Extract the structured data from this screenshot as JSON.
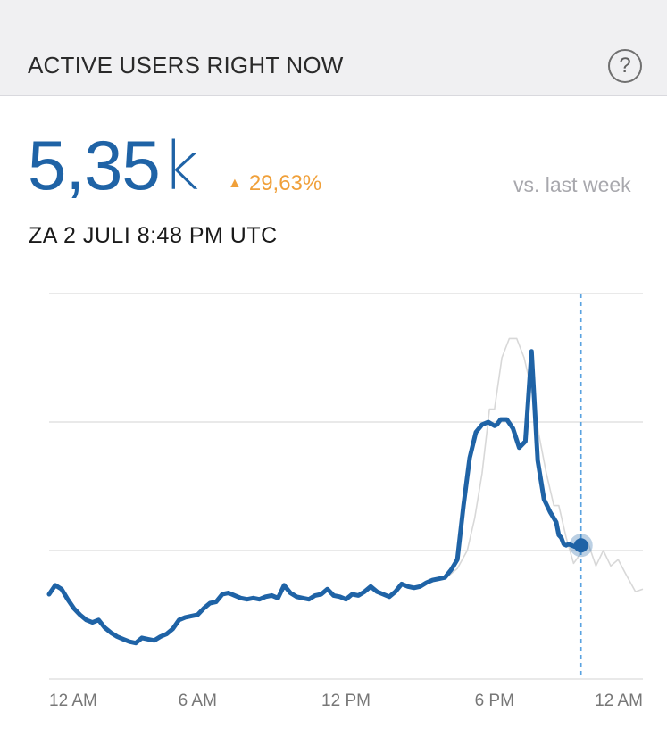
{
  "header": {
    "title": "ACTIVE USERS RIGHT NOW",
    "help_icon": "question-circle-icon",
    "help_symbol": "?"
  },
  "summary": {
    "value": "5,35",
    "unit": "k",
    "change_icon": "triangle-up-icon",
    "change": "29,63%",
    "compare_label": "vs. last week",
    "datetime": "ZA 2 JULI 8:48 PM UTC"
  },
  "colors": {
    "primary": "#1f63a6",
    "comparison": "#d8d8d8",
    "marker_line": "#5aa3e0",
    "positive_change": "#f0a03a",
    "grid": "#dcdcdc"
  },
  "chart_data": {
    "type": "line",
    "x_unit": "hours since 12 AM",
    "x_ticks": [
      {
        "value": 0,
        "label": "12 AM"
      },
      {
        "value": 6,
        "label": "6 AM"
      },
      {
        "value": 12,
        "label": "12 PM"
      },
      {
        "value": 18,
        "label": "6 PM"
      },
      {
        "value": 24,
        "label": "12 AM"
      }
    ],
    "xlim": [
      0,
      24
    ],
    "ylim": [
      0,
      3
    ],
    "grid": true,
    "current_marker_x": 21.5,
    "series": [
      {
        "role": "current",
        "x": [
          0,
          0.25,
          0.5,
          0.75,
          1,
          1.25,
          1.5,
          1.75,
          2,
          2.25,
          2.5,
          2.75,
          3,
          3.25,
          3.5,
          3.75,
          4,
          4.25,
          4.5,
          4.75,
          5,
          5.25,
          5.5,
          5.75,
          6,
          6.25,
          6.5,
          6.75,
          7,
          7.25,
          7.5,
          7.75,
          8,
          8.25,
          8.5,
          8.75,
          9,
          9.25,
          9.5,
          9.75,
          10,
          10.25,
          10.5,
          10.75,
          11,
          11.25,
          11.5,
          11.75,
          12,
          12.25,
          12.5,
          12.75,
          13,
          13.25,
          13.5,
          13.75,
          14,
          14.25,
          14.5,
          14.75,
          15,
          15.25,
          15.5,
          15.75,
          16,
          16.25,
          16.5,
          16.75,
          17,
          17.25,
          17.5,
          17.75,
          18,
          18.1,
          18.25,
          18.5,
          18.75,
          19,
          19.25,
          19.5,
          19.75,
          20,
          20.25,
          20.5,
          20.6,
          20.7,
          20.8,
          20.9,
          21,
          21.25,
          21.5
        ],
        "values": [
          0.66,
          0.73,
          0.7,
          0.62,
          0.55,
          0.5,
          0.46,
          0.44,
          0.46,
          0.4,
          0.36,
          0.33,
          0.31,
          0.29,
          0.28,
          0.32,
          0.31,
          0.3,
          0.33,
          0.35,
          0.39,
          0.46,
          0.48,
          0.49,
          0.5,
          0.55,
          0.59,
          0.6,
          0.66,
          0.67,
          0.65,
          0.63,
          0.62,
          0.63,
          0.62,
          0.64,
          0.65,
          0.63,
          0.73,
          0.67,
          0.64,
          0.63,
          0.62,
          0.65,
          0.66,
          0.7,
          0.65,
          0.64,
          0.62,
          0.66,
          0.65,
          0.68,
          0.72,
          0.68,
          0.66,
          0.64,
          0.68,
          0.74,
          0.72,
          0.71,
          0.72,
          0.75,
          0.77,
          0.78,
          0.79,
          0.85,
          0.93,
          1.35,
          1.72,
          1.92,
          1.98,
          2.0,
          1.97,
          1.98,
          2.02,
          2.02,
          1.95,
          1.8,
          1.85,
          2.55,
          1.7,
          1.4,
          1.3,
          1.22,
          1.12,
          1.1,
          1.05,
          1.04,
          1.05,
          1.03,
          1.04
        ]
      },
      {
        "role": "comparison",
        "x": [
          16,
          16.5,
          16.9,
          17.2,
          17.5,
          17.8,
          18.0,
          18.3,
          18.6,
          18.9,
          19.2,
          19.5,
          19.8,
          20.1,
          20.4,
          20.6,
          20.9,
          21.2,
          21.5,
          21.8,
          22.1,
          22.4,
          22.7,
          23.0,
          23.3,
          23.7,
          24.0
        ],
        "values": [
          0.78,
          0.86,
          1.0,
          1.25,
          1.6,
          2.1,
          2.1,
          2.5,
          2.65,
          2.65,
          2.5,
          2.25,
          1.9,
          1.6,
          1.35,
          1.35,
          1.1,
          0.9,
          0.98,
          1.05,
          0.88,
          1.0,
          0.88,
          0.93,
          0.82,
          0.68,
          0.7
        ]
      }
    ]
  }
}
